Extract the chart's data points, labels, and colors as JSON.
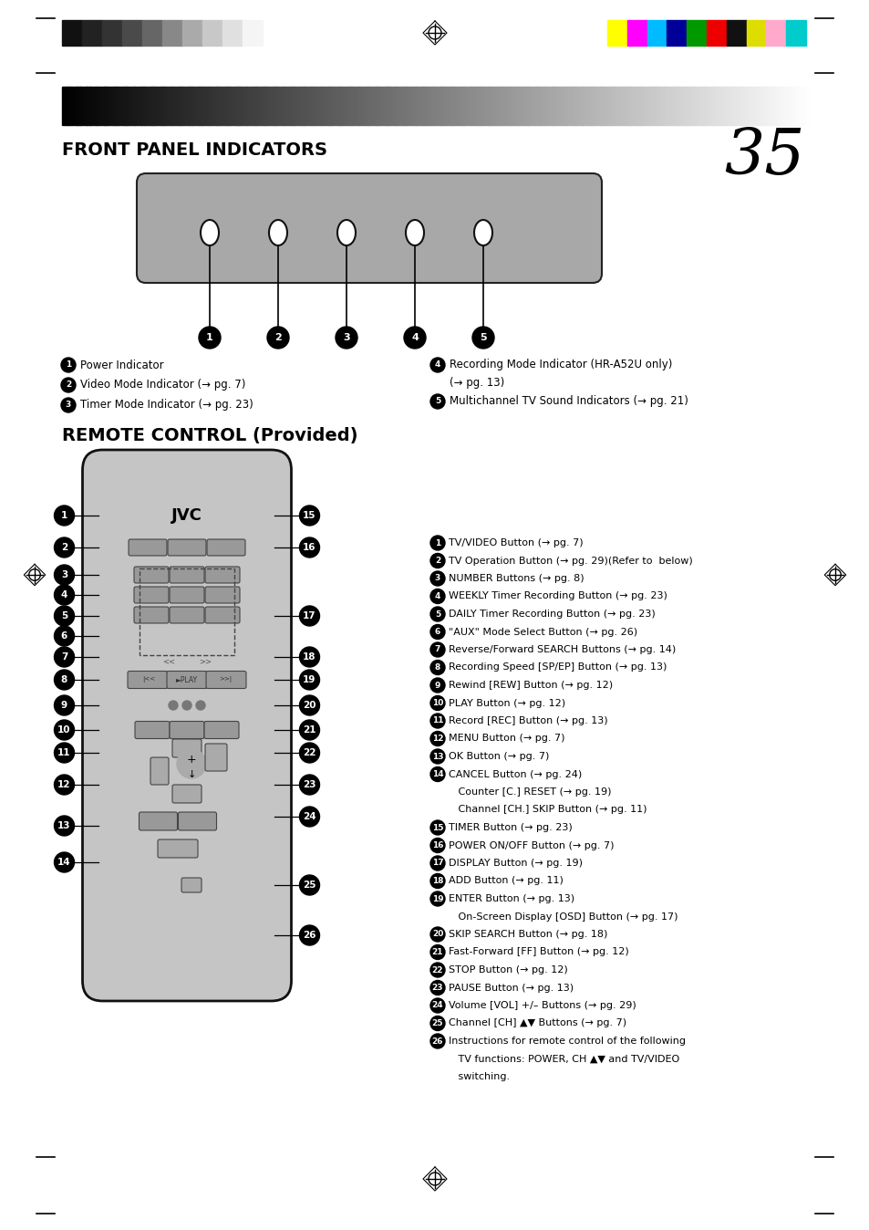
{
  "page_number": "35",
  "section1_title": "FRONT PANEL INDICATORS",
  "section2_title": "REMOTE CONTROL (Provided)",
  "fp_labels_left": [
    "Power Indicator",
    "Video Mode Indicator (→ pg. 7)",
    "Timer Mode Indicator (→ pg. 23)"
  ],
  "fp_labels_right": [
    "Recording Mode Indicator (HR-A52U only)",
    "   (→ pg. 13)",
    "Multichannel TV Sound Indicators (→ pg. 21)"
  ],
  "remote_lines": [
    "TV/VIDEO Button (→ pg. 7)",
    "TV Operation Button (→ pg. 29)(Refer to  below)",
    "NUMBER Buttons (→ pg. 8)",
    "WEEKLY Timer Recording Button (→ pg. 23)",
    "DAILY Timer Recording Button (→ pg. 23)",
    "\"AUX\" Mode Select Button (→ pg. 26)",
    "Reverse/Forward SEARCH Buttons (→ pg. 14)",
    "Recording Speed [SP/EP] Button (→ pg. 13)",
    "Rewind [REW] Button (→ pg. 12)",
    "PLAY Button (→ pg. 12)",
    "Record [REC] Button (→ pg. 13)",
    "MENU Button (→ pg. 7)",
    "OK Button (→ pg. 7)",
    "CANCEL Button (→ pg. 24)",
    "   Counter [C.] RESET (→ pg. 19)",
    "   Channel [CH.] SKIP Button (→ pg. 11)",
    "TIMER Button (→ pg. 23)",
    "POWER ON/OFF Button (→ pg. 7)",
    "DISPLAY Button (→ pg. 19)",
    "ADD Button (→ pg. 11)",
    "ENTER Button (→ pg. 13)",
    "   On-Screen Display [OSD] Button (→ pg. 17)",
    "SKIP SEARCH Button (→ pg. 18)",
    "Fast-Forward [FF] Button (→ pg. 12)",
    "STOP Button (→ pg. 12)",
    "PAUSE Button (→ pg. 13)",
    "Volume [VOL] +/– Buttons (→ pg. 29)",
    "Channel [CH] ▲▼ Buttons (→ pg. 7)",
    "Instructions for remote control of the following",
    "   TV functions: POWER, CH ▲▼ and TV/VIDEO",
    "   switching."
  ],
  "remote_line_nums": [
    1,
    2,
    3,
    4,
    5,
    6,
    7,
    8,
    9,
    10,
    11,
    12,
    13,
    14,
    0,
    0,
    15,
    16,
    17,
    18,
    19,
    0,
    20,
    21,
    22,
    23,
    24,
    25,
    26,
    0,
    0
  ],
  "bg_color": "#ffffff",
  "gray_bar_colors": [
    "#111111",
    "#222222",
    "#333333",
    "#4a4a4a",
    "#666666",
    "#888888",
    "#aaaaaa",
    "#c8c8c8",
    "#e0e0e0",
    "#f5f5f5"
  ],
  "color_bar_colors": [
    "#ffff00",
    "#ff00ff",
    "#00bbff",
    "#000099",
    "#009900",
    "#ee0000",
    "#111111",
    "#dddd00",
    "#ffaacc",
    "#00cccc"
  ]
}
